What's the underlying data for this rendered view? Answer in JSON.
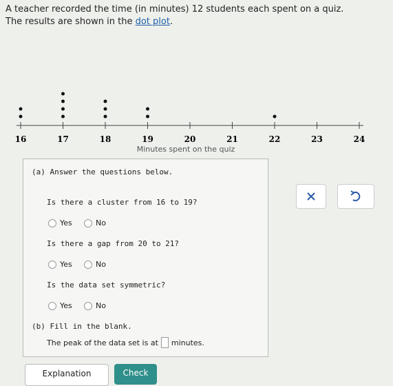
{
  "header": {
    "line1": "A teacher recorded the time (in minutes) 12 students each spent on a quiz.",
    "line2": "The results are shown in the",
    "link": "dot plot",
    "line2_end": "."
  },
  "dot_plot": {
    "type": "dot",
    "x_label": "Minutes spent on the quiz",
    "values": [
      16,
      16,
      17,
      17,
      17,
      17,
      18,
      18,
      18,
      19,
      19,
      22
    ],
    "xlim": [
      16,
      24
    ],
    "xticks": [
      16,
      17,
      18,
      19,
      20,
      21,
      22,
      23,
      24
    ]
  },
  "part_a": {
    "prompt": "(a) Answer the questions below.",
    "questions": [
      {
        "text": "Is there a cluster from 16 to 19?",
        "options": [
          "Yes",
          "No"
        ]
      },
      {
        "text": "Is there a gap from 20 to 21?",
        "options": [
          "Yes",
          "No"
        ]
      },
      {
        "text": "Is the data set symmetric?",
        "options": [
          "Yes",
          "No"
        ]
      }
    ]
  },
  "part_b": {
    "prompt": "(b) Fill in the blank.",
    "before": "The peak of the data set is at",
    "after": "minutes."
  },
  "buttons": {
    "explanation": "Explanation",
    "check": "Check"
  }
}
